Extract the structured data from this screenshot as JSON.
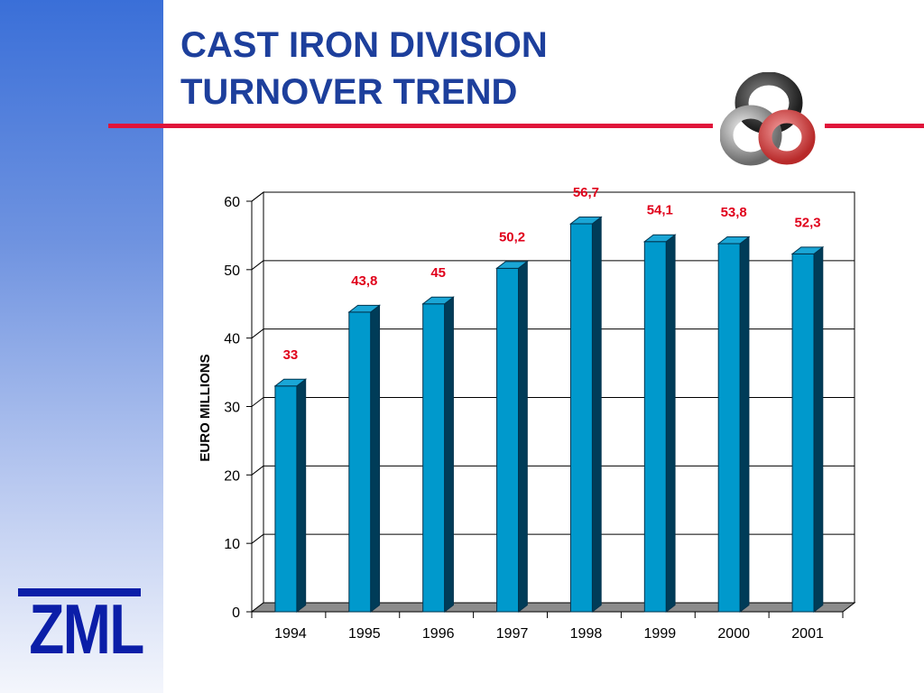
{
  "slide": {
    "title_line1": "CAST IRON DIVISION",
    "title_line2": "TURNOVER TREND",
    "logo_text": "ZML",
    "accent_color": "#e0143a",
    "title_color": "#1d3f9c",
    "logo_color": "#0b1ea8"
  },
  "chart_data": {
    "type": "bar",
    "categories": [
      "1994",
      "1995",
      "1996",
      "1997",
      "1998",
      "1999",
      "2000",
      "2001"
    ],
    "values": [
      33,
      43.8,
      45,
      50.2,
      56.7,
      54.1,
      53.8,
      52.3
    ],
    "data_labels": [
      "33",
      "43,8",
      "45",
      "50,2",
      "56,7",
      "54,1",
      "53,8",
      "52,3"
    ],
    "ylabel": "EURO MILLIONS",
    "ylim": [
      0,
      60
    ],
    "yticks": [
      "0",
      "10",
      "20",
      "30",
      "40",
      "50",
      "60"
    ],
    "grid": true,
    "style": "3d",
    "bar_color": "#0099cc",
    "label_color": "#e0001b"
  }
}
